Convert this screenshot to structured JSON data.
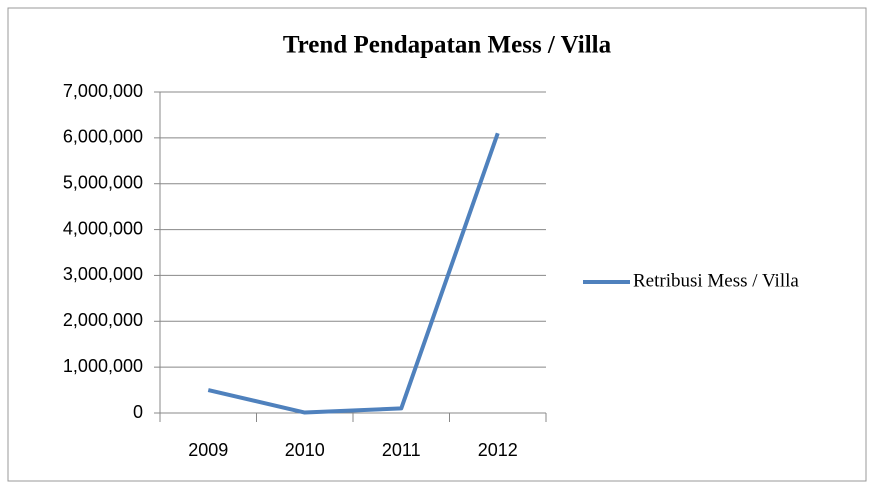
{
  "chart_data": {
    "type": "line",
    "title": "Trend Pendapatan Mess / Villa",
    "categories": [
      "2009",
      "2010",
      "2011",
      "2012"
    ],
    "series": [
      {
        "name": "Retribusi Mess / Villa",
        "color": "#4f81bd",
        "values": [
          500000,
          10000,
          100000,
          6100000
        ]
      }
    ],
    "ylim": [
      0,
      7000000
    ],
    "yticks": [
      0,
      {
        "value": 1000000,
        "label": "1,000,000"
      },
      {
        "value": 2000000,
        "label": "2,000,000"
      },
      {
        "value": 3000000,
        "label": "3,000,000"
      },
      {
        "value": 4000000,
        "label": "4,000,000"
      },
      {
        "value": 5000000,
        "label": "5,000,000"
      },
      {
        "value": 6000000,
        "label": "6,000,000"
      },
      {
        "value": 7000000,
        "label": "7,000,000"
      }
    ],
    "grid": true,
    "legend": "right"
  }
}
